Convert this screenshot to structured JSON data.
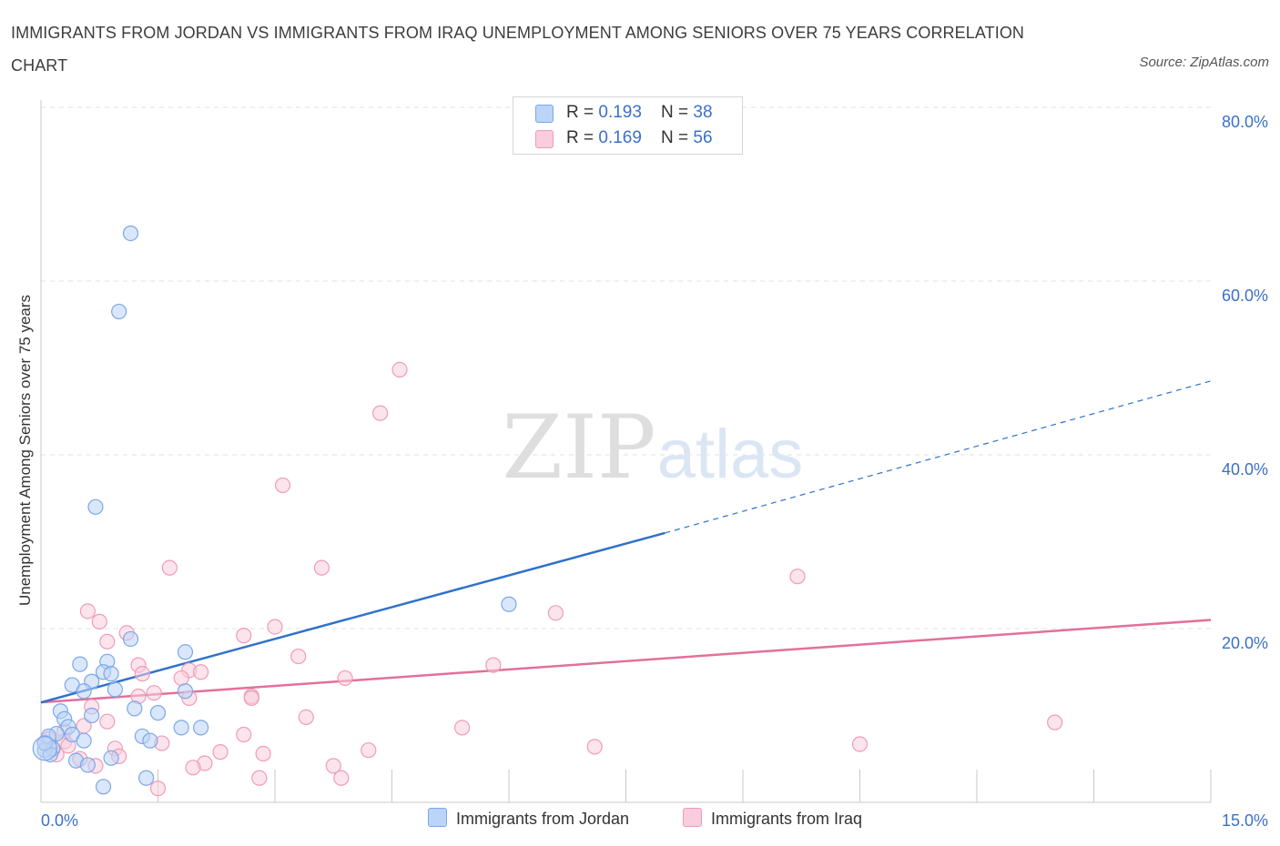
{
  "title": "IMMIGRANTS FROM JORDAN VS IMMIGRANTS FROM IRAQ UNEMPLOYMENT AMONG SENIORS OVER 75 YEARS CORRELATION CHART",
  "source": "Source: ZipAtlas.com",
  "watermark": {
    "zip": "ZIP",
    "atlas": "atlas"
  },
  "colors": {
    "jordan": "#7aa8e8",
    "jordan_fill": "#bcd4f7",
    "jordan_line": "#2f72c9",
    "iraq": "#ef9bb8",
    "iraq_fill": "#f9cddd",
    "iraq_line": "#e2709a",
    "axis_label": "#3a70c9"
  },
  "legend": {
    "jordan": {
      "r_label": "R = ",
      "r_value": "0.193",
      "n_label": "N = ",
      "n_value": "38",
      "name": "Immigrants from Jordan"
    },
    "iraq": {
      "r_label": "R = ",
      "r_value": "0.169",
      "n_label": "N = ",
      "n_value": "56",
      "name": "Immigrants from Iraq"
    }
  },
  "chart_data": {
    "type": "scatter",
    "xlabel": "",
    "ylabel": "Unemployment Among Seniors over 75 years",
    "xlim": [
      0,
      15
    ],
    "ylim": [
      0,
      80
    ],
    "x_tick_labels": [
      "0.0%",
      "15.0%"
    ],
    "y_ticks": [
      20,
      40,
      60,
      80
    ],
    "y_tick_labels": [
      "20.0%",
      "40.0%",
      "60.0%",
      "80.0%"
    ],
    "series": [
      {
        "name": "Immigrants from Jordan",
        "points": [
          [
            1.15,
            65.5
          ],
          [
            1.0,
            56.5
          ],
          [
            0.7,
            34.0
          ],
          [
            6.0,
            22.8
          ],
          [
            1.15,
            18.8
          ],
          [
            1.85,
            17.3
          ],
          [
            0.5,
            15.9
          ],
          [
            0.85,
            16.2
          ],
          [
            0.8,
            15.0
          ],
          [
            0.9,
            14.8
          ],
          [
            0.4,
            13.5
          ],
          [
            0.65,
            13.9
          ],
          [
            0.55,
            12.8
          ],
          [
            0.95,
            13.0
          ],
          [
            1.85,
            12.8
          ],
          [
            0.25,
            10.5
          ],
          [
            1.2,
            10.8
          ],
          [
            1.5,
            10.3
          ],
          [
            0.65,
            10.0
          ],
          [
            0.3,
            9.6
          ],
          [
            0.35,
            8.7
          ],
          [
            1.8,
            8.6
          ],
          [
            2.05,
            8.6
          ],
          [
            0.2,
            7.9
          ],
          [
            0.1,
            7.6
          ],
          [
            0.4,
            7.8
          ],
          [
            1.3,
            7.6
          ],
          [
            1.4,
            7.1
          ],
          [
            0.55,
            7.1
          ],
          [
            0.15,
            6.2
          ],
          [
            0.05,
            6.0
          ],
          [
            0.12,
            5.5
          ],
          [
            0.05,
            6.8
          ],
          [
            0.45,
            4.8
          ],
          [
            0.9,
            5.1
          ],
          [
            0.6,
            4.3
          ],
          [
            0.8,
            1.8
          ],
          [
            1.35,
            2.8
          ]
        ]
      },
      {
        "name": "Immigrants from Iraq",
        "points": [
          [
            4.6,
            49.8
          ],
          [
            4.35,
            44.8
          ],
          [
            3.1,
            36.5
          ],
          [
            1.65,
            27.0
          ],
          [
            3.6,
            27.0
          ],
          [
            9.7,
            26.0
          ],
          [
            0.6,
            22.0
          ],
          [
            0.75,
            20.8
          ],
          [
            6.6,
            21.8
          ],
          [
            3.0,
            20.2
          ],
          [
            1.1,
            19.5
          ],
          [
            2.6,
            19.2
          ],
          [
            0.85,
            18.5
          ],
          [
            3.3,
            16.8
          ],
          [
            5.8,
            15.8
          ],
          [
            1.25,
            15.8
          ],
          [
            1.9,
            15.2
          ],
          [
            2.05,
            15.0
          ],
          [
            1.3,
            14.8
          ],
          [
            1.8,
            14.3
          ],
          [
            3.9,
            14.3
          ],
          [
            1.25,
            12.2
          ],
          [
            1.45,
            12.6
          ],
          [
            2.7,
            12.2
          ],
          [
            2.7,
            12.0
          ],
          [
            1.9,
            12.0
          ],
          [
            0.65,
            11.0
          ],
          [
            3.4,
            9.8
          ],
          [
            0.85,
            9.3
          ],
          [
            13.0,
            9.2
          ],
          [
            0.55,
            8.8
          ],
          [
            0.3,
            8.2
          ],
          [
            5.4,
            8.6
          ],
          [
            2.6,
            7.8
          ],
          [
            0.3,
            7.0
          ],
          [
            1.55,
            6.8
          ],
          [
            0.35,
            6.5
          ],
          [
            0.95,
            6.2
          ],
          [
            7.1,
            6.4
          ],
          [
            10.5,
            6.7
          ],
          [
            4.2,
            6.0
          ],
          [
            2.3,
            5.8
          ],
          [
            2.85,
            5.6
          ],
          [
            0.5,
            5.0
          ],
          [
            1.0,
            5.3
          ],
          [
            0.2,
            5.5
          ],
          [
            2.1,
            4.5
          ],
          [
            1.95,
            4.0
          ],
          [
            3.75,
            4.2
          ],
          [
            0.7,
            4.2
          ],
          [
            0.15,
            6.1
          ],
          [
            0.1,
            7.3
          ],
          [
            3.85,
            2.8
          ],
          [
            2.8,
            2.8
          ],
          [
            1.5,
            1.6
          ],
          [
            0.05,
            6.9
          ]
        ]
      }
    ],
    "trend_lines": [
      {
        "series": "Immigrants from Jordan",
        "solid": {
          "x": [
            0,
            8.0
          ],
          "y": [
            11.5,
            31.0
          ]
        },
        "dashed": {
          "x": [
            8.0,
            15.0
          ],
          "y": [
            31.0,
            48.5
          ]
        }
      },
      {
        "series": "Immigrants from Iraq",
        "solid": {
          "x": [
            0,
            15.0
          ],
          "y": [
            11.5,
            21.0
          ]
        }
      }
    ]
  }
}
